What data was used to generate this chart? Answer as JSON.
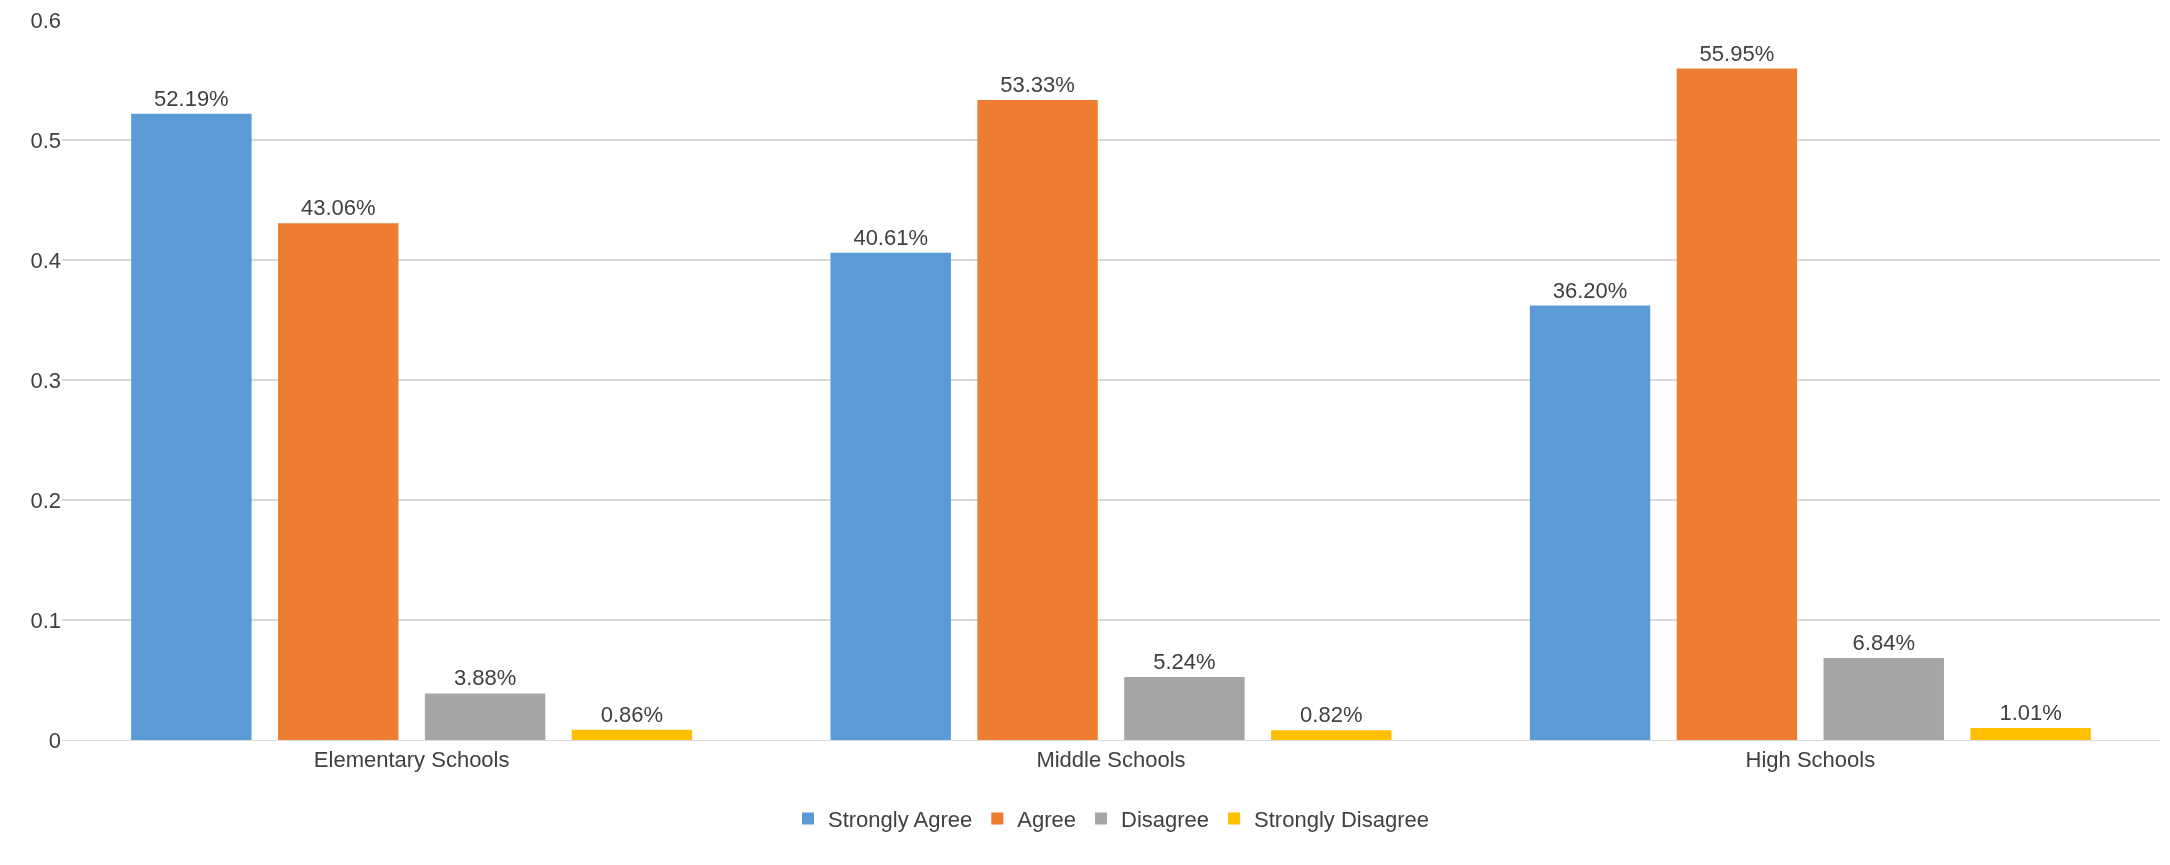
{
  "chart_data": {
    "type": "bar",
    "categories": [
      "Elementary Schools",
      "Middle Schools",
      "High Schools"
    ],
    "series": [
      {
        "name": "Strongly Agree",
        "color": "#5b9bd5",
        "values": [
          0.5219,
          0.4061,
          0.362
        ],
        "value_labels": [
          "52.19%",
          "40.61%",
          "36.20%"
        ]
      },
      {
        "name": "Agree",
        "color": "#ed7d31",
        "values": [
          0.4306,
          0.5333,
          0.5595
        ],
        "value_labels": [
          "43.06%",
          "53.33%",
          "55.95%"
        ]
      },
      {
        "name": "Disagree",
        "color": "#a5a5a5",
        "values": [
          0.0388,
          0.0524,
          0.0684
        ],
        "value_labels": [
          "3.88%",
          "5.24%",
          "6.84%"
        ]
      },
      {
        "name": "Strongly Disagree",
        "color": "#ffc000",
        "values": [
          0.0086,
          0.0082,
          0.0101
        ],
        "value_labels": [
          "0.86%",
          "0.82%",
          "1.01%"
        ]
      }
    ],
    "ylim": [
      0,
      0.6
    ],
    "yticks": [
      0,
      0.1,
      0.2,
      0.3,
      0.4,
      0.5,
      0.6
    ],
    "grid": "y",
    "legend": "bottom"
  }
}
